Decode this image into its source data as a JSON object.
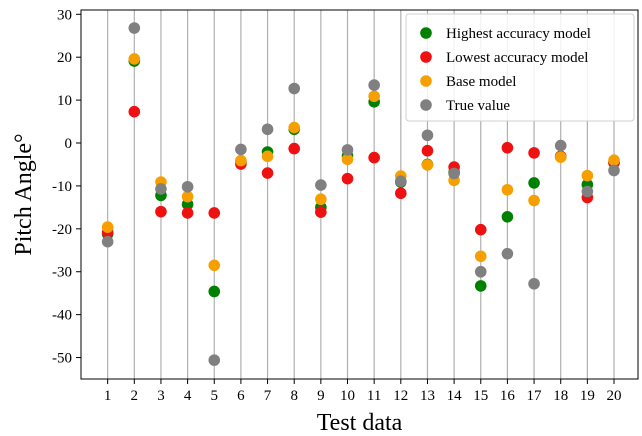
{
  "chart_data": {
    "type": "scatter",
    "xlabel": "Test data",
    "ylabel": "Pitch Angle°",
    "x": [
      1,
      2,
      3,
      4,
      5,
      6,
      7,
      8,
      9,
      10,
      11,
      12,
      13,
      14,
      15,
      16,
      17,
      18,
      19,
      20
    ],
    "ylim": [
      -55,
      31
    ],
    "yticks": [
      30,
      20,
      10,
      0,
      -10,
      -20,
      -30,
      -40,
      -50
    ],
    "grid": "vertical lines at each test index",
    "legend_position": "top-right",
    "series": [
      {
        "name": "Highest accuracy model",
        "color": "#008000",
        "values": [
          -21.2,
          19.1,
          -12.2,
          -14.3,
          -34.6,
          -4.4,
          -2.1,
          3.2,
          -15.0,
          -3.0,
          9.6,
          -9.1,
          -5.0,
          -6.8,
          -33.3,
          -17.2,
          -9.3,
          -3.2,
          -9.7,
          -4.5
        ]
      },
      {
        "name": "Lowest accuracy model",
        "color": "#ee1111",
        "values": [
          -20.8,
          7.3,
          -16.0,
          -16.3,
          -16.3,
          -4.9,
          -7.0,
          -1.3,
          -16.1,
          -8.3,
          -3.4,
          -11.7,
          -1.8,
          -5.6,
          -20.2,
          -1.1,
          -2.3,
          -3.1,
          -12.7,
          -4.6
        ]
      },
      {
        "name": "Base model",
        "color": "#f5a000",
        "values": [
          -19.6,
          19.6,
          -9.1,
          -12.5,
          -28.5,
          -4.1,
          -3.1,
          3.6,
          -13.1,
          -3.8,
          10.9,
          -7.7,
          -5.1,
          -8.7,
          -26.4,
          -10.9,
          -13.4,
          -3.3,
          -7.6,
          -4.0
        ]
      },
      {
        "name": "True value",
        "color": "#808080",
        "values": [
          -23.0,
          26.8,
          -10.7,
          -10.2,
          -50.6,
          -1.5,
          3.2,
          12.7,
          -9.8,
          -1.6,
          13.5,
          -8.9,
          1.8,
          -7.1,
          -30.0,
          -25.8,
          -32.8,
          -0.6,
          -11.3,
          -6.4
        ]
      }
    ]
  }
}
